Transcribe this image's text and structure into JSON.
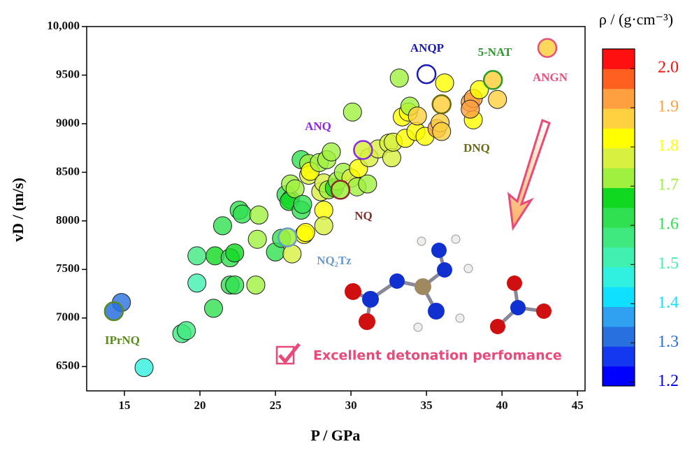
{
  "chart_data": {
    "type": "scatter",
    "xlabel": "P / GPa",
    "ylabel": "vD / (m/s)",
    "xlim": [
      12.5,
      45.5
    ],
    "ylim": [
      6250,
      10000
    ],
    "xticks": [
      15,
      20,
      25,
      30,
      35,
      40,
      45
    ],
    "yticks": [
      6500,
      7000,
      7500,
      8000,
      8500,
      9000,
      9500,
      {
        "value": 10000,
        "label": "10,000"
      }
    ],
    "x": [
      14.8,
      16.3,
      18.8,
      19.1,
      19.8,
      19.8,
      20.9,
      21.5,
      21,
      22,
      22.3,
      22.6,
      22.8,
      22,
      22.3,
      23.7,
      23.9,
      23.8,
      25,
      25.4,
      25.7,
      26,
      25.9,
      26,
      26.3,
      26.1,
      26.9,
      27,
      26.7,
      26.7,
      26.8,
      27.2,
      27.2,
      27.3,
      27.9,
      28.4,
      28.7,
      28,
      28.2,
      28.2,
      28.2,
      28.5,
      28.9,
      29.1,
      29.5,
      30,
      30.1,
      30.5,
      30.4,
      31.1,
      31.2,
      31.8,
      32.5,
      32.7,
      32.8,
      33.2,
      33.4,
      33.6,
      33.8,
      33.9,
      34.3,
      34.4,
      34.9,
      35.7,
      35.9,
      36,
      36.2,
      38.1,
      37.9,
      38.1,
      37.9,
      38.5,
      39.7
    ],
    "y": [
      7160,
      6490,
      6840,
      6870,
      7640,
      7360,
      7100,
      7950,
      7640,
      7620,
      7670,
      8110,
      8070,
      7340,
      7340,
      7340,
      8060,
      7810,
      7680,
      7820,
      8270,
      8220,
      8200,
      8380,
      8330,
      7660,
      7860,
      7880,
      8630,
      8110,
      8170,
      8590,
      8470,
      8510,
      8600,
      8630,
      8710,
      8300,
      8390,
      8110,
      7950,
      8320,
      8340,
      8410,
      8500,
      8440,
      9120,
      8540,
      8350,
      8380,
      8650,
      8740,
      8800,
      8650,
      8810,
      9470,
      9070,
      8850,
      9120,
      9180,
      8920,
      9080,
      8870,
      8950,
      9010,
      8920,
      9420,
      9040,
      9220,
      9260,
      9150,
      9350,
      9250
    ],
    "density": [
      1.3,
      1.45,
      1.55,
      1.55,
      1.55,
      1.5,
      1.6,
      1.6,
      1.68,
      1.6,
      1.68,
      1.62,
      1.6,
      1.6,
      1.62,
      1.72,
      1.72,
      1.72,
      1.62,
      1.6,
      1.6,
      1.6,
      1.65,
      1.72,
      1.72,
      1.76,
      1.8,
      1.8,
      1.62,
      1.62,
      1.6,
      1.7,
      1.75,
      1.82,
      1.72,
      1.7,
      1.72,
      1.78,
      1.78,
      1.8,
      1.78,
      1.72,
      1.65,
      1.7,
      1.72,
      1.75,
      1.7,
      1.82,
      1.72,
      1.72,
      1.76,
      1.78,
      1.78,
      1.76,
      1.76,
      1.72,
      1.82,
      1.82,
      1.8,
      1.7,
      1.82,
      1.85,
      1.82,
      1.9,
      1.85,
      1.88,
      1.8,
      1.8,
      1.9,
      1.9,
      1.9,
      1.82,
      1.86
    ],
    "highlights": {
      "labels": [
        "IPrNQ",
        "ANQP",
        "5-NAT",
        "ANGN",
        "ANQ",
        "DNQ",
        "NQ",
        "NQ₂Tz"
      ],
      "x": [
        14.3,
        35,
        39.4,
        43,
        30.8,
        36,
        29.3,
        25.8
      ],
      "y": [
        7070,
        9510,
        9450,
        9780,
        8730,
        9200,
        8320,
        7830
      ],
      "density": [
        1.3,
        null,
        1.86,
        1.88,
        1.76,
        1.85,
        1.72,
        1.72
      ],
      "colors": [
        "#5a8a20",
        "#1a1ab4",
        "#2a9a2a",
        "#e8507a",
        "#8a2ae0",
        "#6a6a10",
        "#8a2a2a",
        "#6a9ad0"
      ]
    },
    "colorbar": {
      "title": "ρ / (g·cm⁻³)",
      "lim": [
        1.19,
        2.05
      ],
      "ticks": [
        1.2,
        1.3,
        1.4,
        1.5,
        1.6,
        1.7,
        1.8,
        1.9,
        2.0
      ],
      "colors": [
        "#0000ff",
        "#1438f0",
        "#2870e0",
        "#30a0f0",
        "#10e0ff",
        "#30f0e0",
        "#40f0b0",
        "#40e880",
        "#30e050",
        "#10d820",
        "#a0f040",
        "#d8f040",
        "#ffff00",
        "#ffd040",
        "#ffa040",
        "#ff6020",
        "#ff1010"
      ]
    }
  },
  "note": "Excellent detonation perfomance"
}
